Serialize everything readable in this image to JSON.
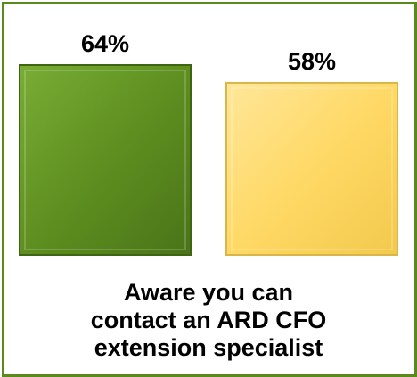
{
  "chart_data": {
    "type": "bar",
    "categories": [
      "",
      ""
    ],
    "values": [
      64,
      58
    ],
    "value_labels": [
      "64%",
      "58%"
    ],
    "colors": [
      "#5e8f20",
      "#ffd966"
    ],
    "ylim": [
      0,
      64
    ],
    "title": "",
    "xlabel": "Aware you can contact an ARD CFO extension specialist",
    "xlabel_lines": [
      "Aware you can",
      "contact an ARD CFO",
      "extension specialist"
    ],
    "ylabel": "",
    "grid": false,
    "legend": "none"
  }
}
